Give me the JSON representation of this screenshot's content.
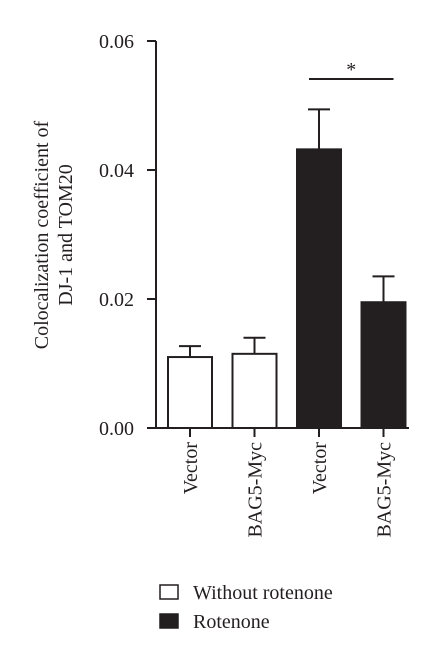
{
  "chart_data": {
    "type": "bar",
    "title": "",
    "xlabel": "",
    "ylabel_lines": [
      "Colocalization coefficient of",
      "DJ-1 and TOM20"
    ],
    "ylim": [
      0,
      0.06
    ],
    "yticks": [
      "0.00",
      "0.02",
      "0.04",
      "0.06"
    ],
    "ytick_values": [
      0,
      0.02,
      0.04,
      0.06
    ],
    "categories": [
      "Vector",
      "BAG5-Myc",
      "Vector",
      "BAG5-Myc"
    ],
    "values": [
      0.011,
      0.0115,
      0.0432,
      0.0195
    ],
    "errors": [
      0.0017,
      0.0025,
      0.0062,
      0.004
    ],
    "bar_group": [
      0,
      0,
      1,
      1
    ],
    "series": [
      {
        "name": "Without rotenone",
        "fill": "#ffffff"
      },
      {
        "name": "Rotenone",
        "fill": "#231f20"
      }
    ],
    "significance": {
      "from": 2,
      "to": 3,
      "label": "*"
    },
    "grid": false,
    "legend_position": "bottom"
  },
  "colors": {
    "ink": "#231f20",
    "background": "#ffffff"
  }
}
